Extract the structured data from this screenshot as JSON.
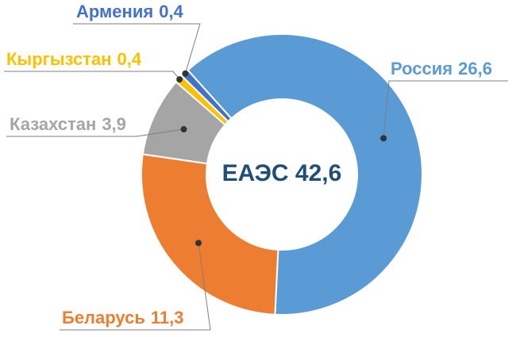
{
  "chart_data": {
    "type": "donut",
    "categories": [
      "Россия",
      "Беларусь",
      "Казахстан",
      "Кыргызстан",
      "Армения"
    ],
    "values": [
      26.6,
      11.3,
      3.9,
      0.4,
      0.4
    ],
    "value_labels": [
      "26,6",
      "11,3",
      "3,9",
      "0,4",
      "0,4"
    ],
    "colors": [
      "#5b9bd5",
      "#ed7d31",
      "#a5a5a5",
      "#ffc000",
      "#4472c4"
    ],
    "center_label": "ЕАЭС 42,6"
  }
}
